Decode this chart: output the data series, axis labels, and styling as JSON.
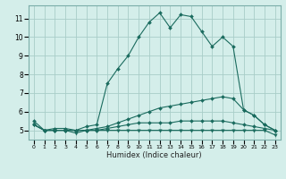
{
  "title": "",
  "xlabel": "Humidex (Indice chaleur)",
  "ylabel": "",
  "bg_color": "#d4eeea",
  "grid_color": "#a8cdc8",
  "line_color": "#1a6b5e",
  "xlim": [
    -0.5,
    23.5
  ],
  "ylim": [
    4.5,
    11.7
  ],
  "xticks": [
    0,
    1,
    2,
    3,
    4,
    5,
    6,
    7,
    8,
    9,
    10,
    11,
    12,
    13,
    14,
    15,
    16,
    17,
    18,
    19,
    20,
    21,
    22,
    23
  ],
  "yticks": [
    5,
    6,
    7,
    8,
    9,
    10,
    11
  ],
  "series": [
    {
      "x": [
        0,
        1,
        2,
        3,
        4,
        5,
        6,
        7,
        8,
        9,
        10,
        11,
        12,
        13,
        14,
        15,
        16,
        17,
        18,
        19,
        20,
        21,
        22,
        23
      ],
      "y": [
        5.5,
        5.0,
        5.1,
        5.1,
        5.0,
        5.2,
        5.3,
        7.5,
        8.3,
        9.0,
        10.0,
        10.8,
        11.3,
        10.5,
        11.2,
        11.1,
        10.3,
        9.5,
        10.0,
        9.5,
        6.1,
        5.8,
        5.3,
        5.0
      ],
      "marker": "D",
      "markersize": 2.0,
      "linewidth": 0.8
    },
    {
      "x": [
        0,
        1,
        2,
        3,
        4,
        5,
        6,
        7,
        8,
        9,
        10,
        11,
        12,
        13,
        14,
        15,
        16,
        17,
        18,
        19,
        20,
        21,
        22,
        23
      ],
      "y": [
        5.3,
        5.0,
        5.0,
        5.0,
        5.0,
        5.0,
        5.1,
        5.2,
        5.4,
        5.6,
        5.8,
        6.0,
        6.2,
        6.3,
        6.4,
        6.5,
        6.6,
        6.7,
        6.8,
        6.7,
        6.1,
        5.8,
        5.3,
        5.0
      ],
      "marker": "D",
      "markersize": 2.0,
      "linewidth": 0.8
    },
    {
      "x": [
        0,
        1,
        2,
        3,
        4,
        5,
        6,
        7,
        8,
        9,
        10,
        11,
        12,
        13,
        14,
        15,
        16,
        17,
        18,
        19,
        20,
        21,
        22,
        23
      ],
      "y": [
        5.3,
        5.0,
        5.0,
        5.0,
        5.0,
        5.0,
        5.0,
        5.1,
        5.2,
        5.3,
        5.4,
        5.4,
        5.4,
        5.4,
        5.5,
        5.5,
        5.5,
        5.5,
        5.5,
        5.4,
        5.3,
        5.2,
        5.1,
        5.0
      ],
      "marker": "D",
      "markersize": 2.0,
      "linewidth": 0.8
    },
    {
      "x": [
        0,
        1,
        2,
        3,
        4,
        5,
        6,
        7,
        8,
        9,
        10,
        11,
        12,
        13,
        14,
        15,
        16,
        17,
        18,
        19,
        20,
        21,
        22,
        23
      ],
      "y": [
        5.3,
        5.0,
        5.0,
        5.0,
        4.85,
        5.0,
        5.0,
        5.0,
        5.0,
        5.0,
        5.0,
        5.0,
        5.0,
        5.0,
        5.0,
        5.0,
        5.0,
        5.0,
        5.0,
        5.0,
        5.0,
        5.0,
        5.0,
        4.75
      ],
      "marker": "v",
      "markersize": 2.5,
      "linewidth": 0.8
    }
  ]
}
